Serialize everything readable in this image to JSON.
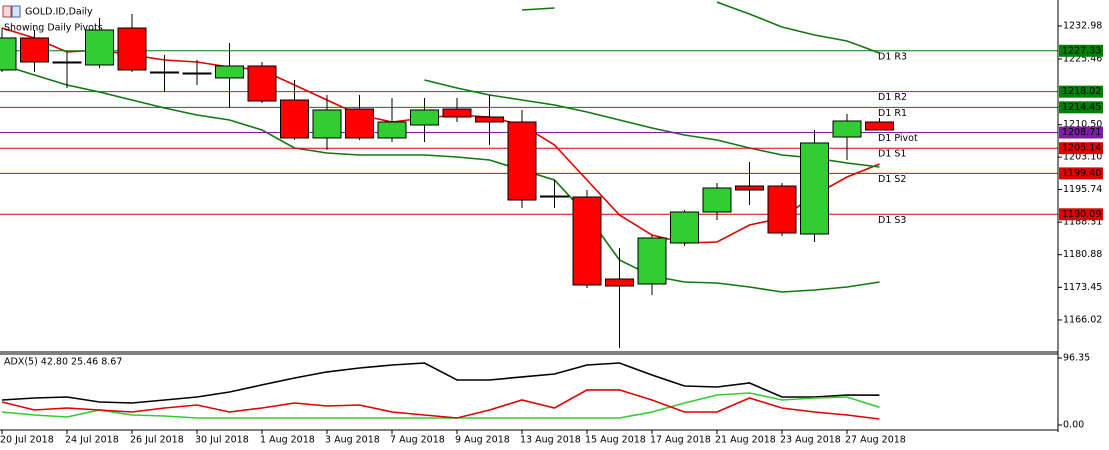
{
  "chart_data": [
    {
      "type": "candlestick",
      "title": "GOLD.ID,Daily",
      "subtitle": "Showing Daily Pivots",
      "categories": [
        "20 Jul 2018",
        null,
        "24 Jul 2018",
        null,
        "26 Jul 2018",
        null,
        "30 Jul 2018",
        null,
        "1 Aug 2018",
        null,
        "3 Aug 2018",
        null,
        "7 Aug 2018",
        null,
        "9 Aug 2018",
        null,
        "13 Aug 2018",
        null,
        "15 Aug 2018",
        null,
        "17 Aug 2018",
        null,
        "21 Aug 2018",
        null,
        "23 Aug 2018",
        null,
        "27 Aug 2018",
        null
      ],
      "open": [
        1222.96,
        1230.25,
        1224.78,
        1224.1,
        1232.52,
        1222.5,
        1222.27,
        1221.14,
        1223.87,
        1216.12,
        1207.47,
        1214.07,
        1207.47,
        1210.43,
        1214.07,
        1212.25,
        1211.11,
        1194.25,
        1194.03,
        1175.35,
        1174.21,
        1183.55,
        1190.61,
        1196.53,
        1196.53,
        1185.6,
        1207.69,
        1211.11
      ],
      "high": [
        1232.52,
        1232.07,
        1227.06,
        1234.8,
        1235.71,
        1226.37,
        1225.24,
        1229.11,
        1224.78,
        1220.68,
        1217.26,
        1217.26,
        1216.58,
        1216.58,
        1216.58,
        1217.26,
        1213.85,
        1197.9,
        1195.62,
        1182.41,
        1185.37,
        1191.07,
        1197.21,
        1201.99,
        1197.21,
        1209.29,
        1212.93,
        1212.02
      ],
      "low": [
        1222.5,
        1222.5,
        1218.86,
        1223.41,
        1222.5,
        1217.95,
        1219.54,
        1214.3,
        1215.44,
        1207.01,
        1204.73,
        1207.01,
        1206.56,
        1206.56,
        1211.11,
        1205.87,
        1191.52,
        1191.52,
        1173.3,
        1159.63,
        1171.7,
        1182.86,
        1188.79,
        1192.2,
        1185.14,
        1183.78,
        1202.45,
        1209.29
      ],
      "close": [
        1230.25,
        1224.78,
        1224.78,
        1232.07,
        1222.96,
        1222.27,
        1222.05,
        1223.87,
        1215.89,
        1207.47,
        1213.85,
        1207.47,
        1211.11,
        1213.85,
        1212.25,
        1211.11,
        1193.34,
        1194.03,
        1173.98,
        1173.75,
        1184.69,
        1190.61,
        1196.08,
        1195.62,
        1185.83,
        1206.33,
        1211.34,
        1209.29
      ],
      "up_color": "#32cd32",
      "down_color": "#ff0000",
      "doji_color": "#000000",
      "overlays": [
        {
          "color": "#e00000",
          "values": [
            1232.52,
            1230.25,
            1227.06,
            1227.51,
            1226.37,
            1225.24,
            1224.78,
            1223.64,
            1222.96,
            1219.54,
            1216.12,
            1212.71,
            1211.11,
            1212.02,
            1212.71,
            1212.25,
            1210.43,
            1205.87,
            1197.9,
            1189.93,
            1185.37,
            1183.55,
            1183.78,
            1187.65,
            1189.24,
            1194.48,
            1198.58,
            1201.54
          ]
        },
        {
          "color": "#107810",
          "values": [
            null,
            null,
            null,
            null,
            null,
            null,
            null,
            null,
            null,
            null,
            null,
            null,
            null,
            null,
            null,
            null,
            1236.62,
            1237.08,
            null,
            null,
            null,
            null,
            1238.43,
            1235.71,
            1232.75,
            1230.93,
            1229.56,
            1226.83
          ]
        },
        {
          "color": "#107810",
          "values": [
            null,
            null,
            null,
            null,
            null,
            null,
            null,
            null,
            null,
            null,
            null,
            null,
            null,
            1220.68,
            1218.86,
            1217.26,
            1216.12,
            1214.98,
            1213.39,
            1211.57,
            1209.75,
            1208.15,
            1207.01,
            1205.19,
            1203.6,
            1202.91,
            1201.77,
            1200.86
          ]
        },
        {
          "color": "#107810",
          "values": [
            1224.1,
            1221.82,
            1219.54,
            1217.95,
            1216.12,
            1214.3,
            1212.71,
            1211.57,
            1209.29,
            1205.19,
            1204.05,
            1203.6,
            1203.6,
            1203.6,
            1203.14,
            1202.45,
            1200.18,
            1197.9,
            1189.93,
            1179.67,
            1176.03,
            1174.66,
            1174.43,
            1173.52,
            1172.38,
            1172.84,
            1173.52,
            1174.66
          ]
        }
      ],
      "levels": [
        {
          "name": "D1 R3",
          "value": 1227.33,
          "color": "#008000",
          "text_color": "#000000"
        },
        {
          "name": "D1 R2",
          "value": 1218.02,
          "color": "#008000",
          "text_color": "#000000"
        },
        {
          "name": "D1 R1",
          "value": 1214.45,
          "color": "#008000",
          "text_color": "#000000"
        },
        {
          "name": "D1 Pivot",
          "value": 1208.71,
          "color": "#7a1fa2",
          "text_color": "#ffffff"
        },
        {
          "name": "D1 S1",
          "value": 1205.14,
          "color": "#e00000",
          "text_color": "#000000"
        },
        {
          "name": "D1 S2",
          "value": 1199.4,
          "value_label": "1199.40",
          "color": "#e00000",
          "text_color": "#000000"
        },
        {
          "name": "D1 S3",
          "value": 1190.09,
          "color": "#e00000",
          "text_color": "#000000"
        }
      ],
      "ylim": [
        1158.72,
        1238.9
      ],
      "yticks": [
        1232.98,
        1225.46,
        {
          "value": 1210.5,
          "label": "1210.50"
        },
        {
          "value": 1203.1,
          "label": "1203.10"
        },
        1195.74,
        1188.31,
        1180.88,
        1173.45,
        1166.02
      ]
    },
    {
      "type": "line",
      "title": "ADX(5) 42.80 25.46 8.67",
      "series": [
        {
          "color": "#000000",
          "values": [
            36.0,
            38.8,
            40.3,
            33.1,
            31.7,
            36.0,
            40.3,
            47.5,
            57.6,
            67.6,
            76.3,
            82.0,
            86.3,
            89.2,
            64.7,
            64.7,
            69.1,
            73.4,
            86.3,
            89.2,
            71.9,
            56.1,
            54.7,
            60.4,
            40.3,
            40.3,
            43.2,
            42.8
          ]
        },
        {
          "color": "#32cd32",
          "values": [
            18.7,
            14.4,
            11.5,
            21.6,
            14.4,
            12.9,
            10.1,
            10.1,
            10.1,
            10.1,
            10.1,
            10.1,
            10.1,
            10.1,
            10.1,
            10.1,
            10.1,
            10.1,
            10.1,
            10.1,
            18.7,
            31.7,
            43.2,
            46.0,
            36.0,
            38.8,
            40.3,
            25.46
          ]
        },
        {
          "color": "#e00000",
          "values": [
            33.1,
            21.6,
            24.5,
            21.6,
            18.7,
            24.5,
            28.8,
            18.7,
            24.5,
            31.7,
            27.3,
            28.8,
            18.7,
            14.4,
            10.1,
            21.6,
            36.0,
            24.5,
            50.4,
            50.4,
            36.0,
            18.7,
            18.7,
            38.8,
            24.5,
            18.7,
            14.4,
            8.67
          ]
        }
      ],
      "ylim": [
        -7.2,
        102.1
      ],
      "yticks": [
        96.35,
        {
          "value": 0,
          "label": "0.00"
        }
      ]
    }
  ]
}
